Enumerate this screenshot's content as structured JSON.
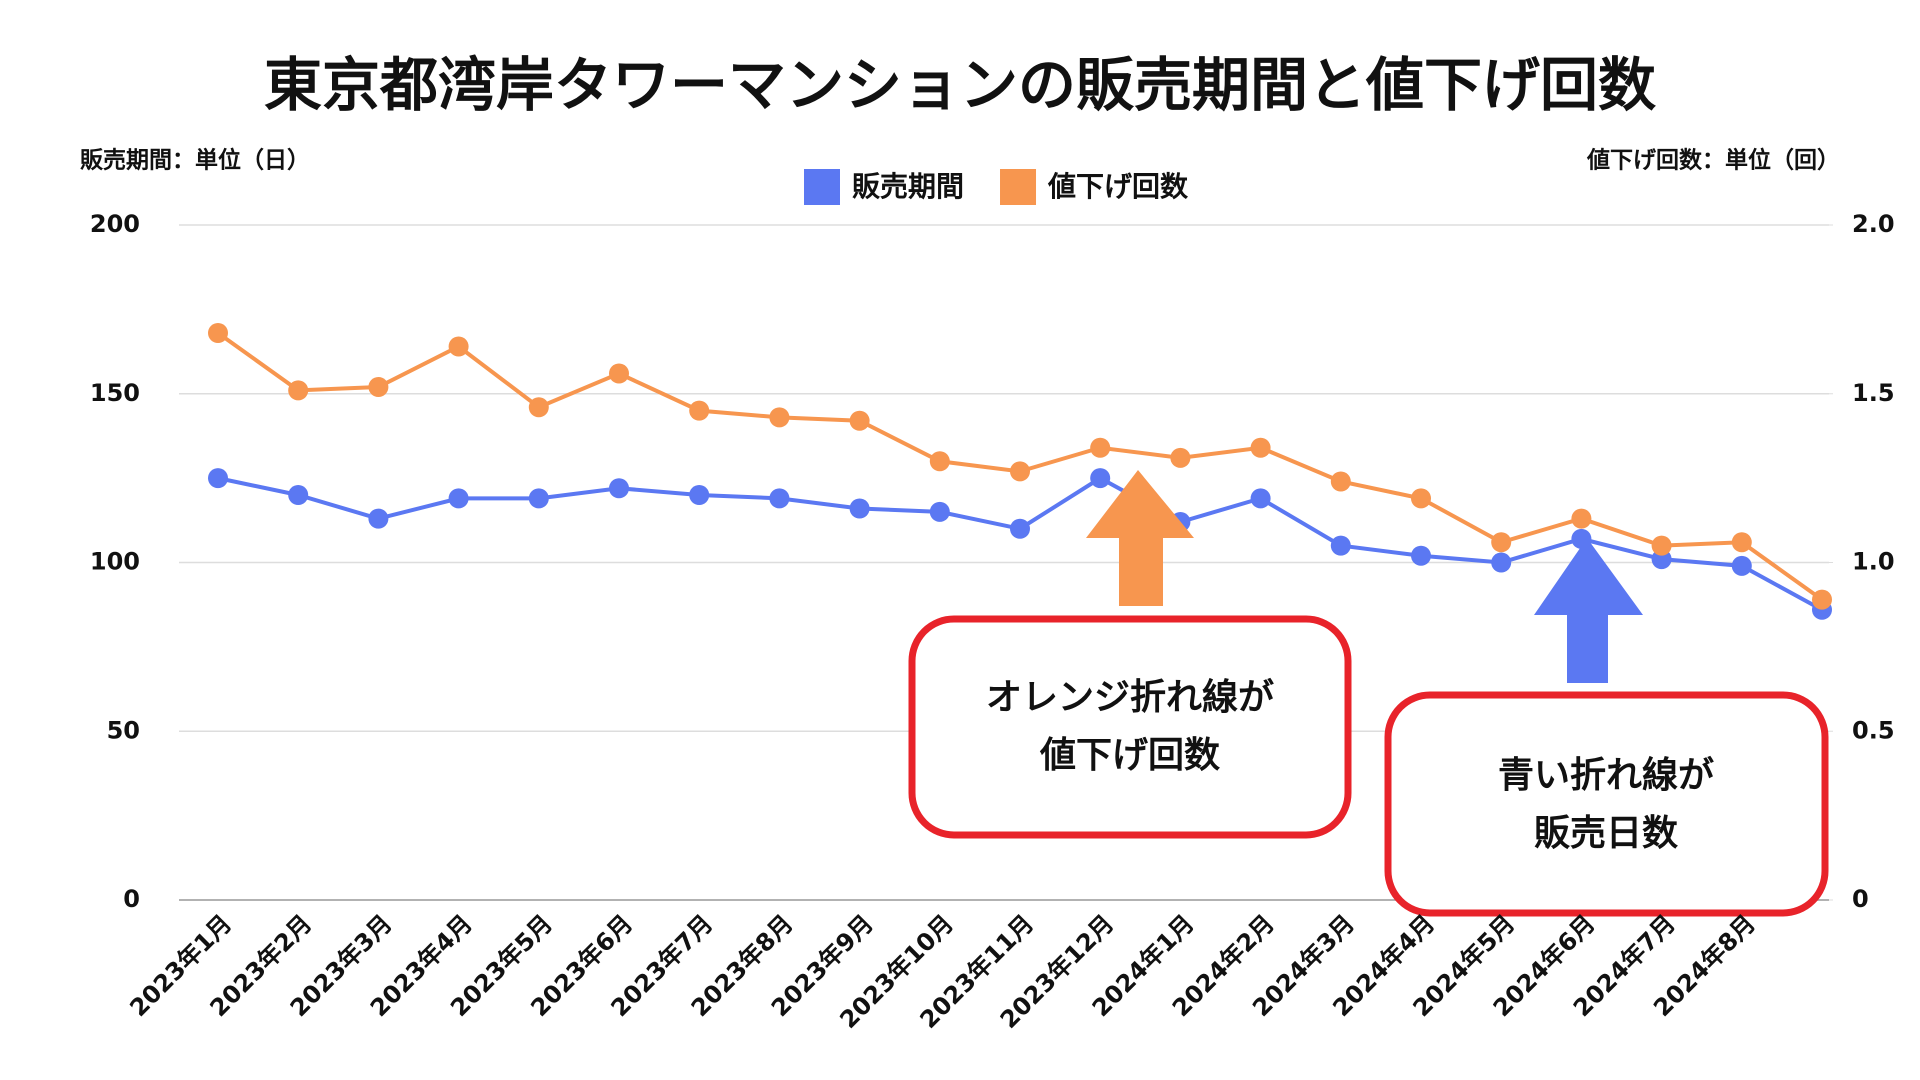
{
  "chart_data": {
    "type": "line",
    "title": "東京都湾岸タワーマンションの販売期間と値下げ回数",
    "y_label": "販売期間：単位（日）",
    "y2_label": "値下げ回数：単位（回）",
    "categories": [
      "2023年1月",
      "2023年2月",
      "2023年3月",
      "2023年4月",
      "2023年5月",
      "2023年6月",
      "2023年7月",
      "2023年8月",
      "2023年9月",
      "2023年10月",
      "2023年11月",
      "2023年12月",
      "2024年1月",
      "2024年2月",
      "2024年3月",
      "2024年4月",
      "2024年5月",
      "2024年6月",
      "2024年7月",
      "2024年8月",
      null
    ],
    "series": [
      {
        "name": "販売期間",
        "color": "#5B78F2",
        "values": [
          125,
          120,
          113,
          119,
          119,
          122,
          120,
          119,
          116,
          115,
          110,
          125,
          112,
          119,
          105,
          102,
          100,
          107,
          101,
          99,
          86
        ]
      },
      {
        "name": "値下げ回数",
        "color": "#F7964F",
        "axis": "y2",
        "values": [
          1.68,
          1.51,
          1.52,
          1.64,
          1.46,
          1.56,
          1.45,
          1.43,
          1.42,
          1.3,
          1.27,
          1.34,
          1.31,
          1.34,
          1.24,
          1.19,
          1.06,
          1.13,
          1.05,
          1.06,
          0.89
        ]
      }
    ],
    "ylim": [
      0,
      200
    ],
    "yticks": [
      0,
      50,
      100,
      150,
      200
    ],
    "y2lim": [
      0,
      2
    ],
    "y2ticks": [
      0,
      0.5,
      {
        "value": 1,
        "label": "1.0"
      },
      1.5,
      {
        "value": 2,
        "label": "2.0"
      }
    ],
    "grid": true,
    "legend": "top",
    "annotations": [
      {
        "lines": [
          "オレンジ折れ線が",
          "値下げ回数"
        ]
      },
      {
        "lines": [
          "青い折れ線が",
          "販売日数"
        ]
      }
    ]
  }
}
